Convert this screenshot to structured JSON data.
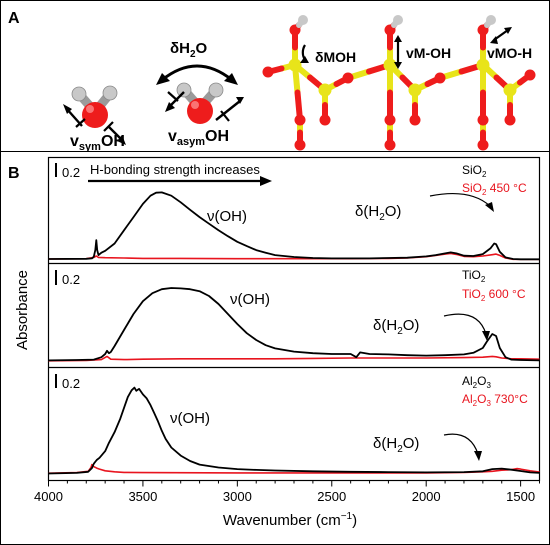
{
  "panel_a": {
    "label": "A",
    "molecule_1": {
      "main": "v",
      "sub": "sym",
      "tail": "OH"
    },
    "molecule_2": {
      "top_main": "δH",
      "top_sub": "2",
      "top_tail": "O",
      "main": "v",
      "sub": "asym",
      "tail": "OH"
    },
    "surface_labels": [
      "δMOH",
      "vM-OH",
      "vMO-H"
    ],
    "colors": {
      "oxygen": "#ee1c1c",
      "hydrogen": "#c8c8c8",
      "metal": "#e8e41a"
    }
  },
  "panel_b": {
    "label": "B"
  },
  "chart_data": {
    "type": "line",
    "xlabel_main": "Wavenumber (cm",
    "xlabel_sup": "−1",
    "xlabel_tail": ")",
    "ylabel": "Absorbance",
    "xlim": [
      4000,
      1400
    ],
    "x_ticks": [
      4000,
      3500,
      3000,
      2500,
      2000,
      1500
    ],
    "arrow_label": "H-bonding strength increases",
    "scale_bar_label": "0.2",
    "colors": {
      "untreated": "#000000",
      "heated": "#e8141e"
    },
    "subplots": [
      {
        "material": {
          "main": "SiO",
          "sub": "2",
          "tail": ""
        },
        "material_heated": {
          "main": "SiO",
          "sub": "2",
          "tail": " 450 °C"
        },
        "voh_label": "ν(OH)",
        "dh2o_label": {
          "main": "δ(H",
          "sub": "2",
          "tail": "O)"
        },
        "series": [
          {
            "key": "untreated",
            "points": [
              [
                4000,
                0.03
              ],
              [
                3800,
                0.035
              ],
              [
                3770,
                0.05
              ],
              [
                3760,
                0.1
              ],
              [
                3752,
                0.3
              ],
              [
                3747,
                0.6
              ],
              [
                3742,
                0.3
              ],
              [
                3735,
                0.15
              ],
              [
                3720,
                0.22
              ],
              [
                3700,
                0.28
              ],
              [
                3650,
                0.5
              ],
              [
                3600,
                0.9
              ],
              [
                3550,
                1.3
              ],
              [
                3500,
                1.7
              ],
              [
                3460,
                1.95
              ],
              [
                3430,
                2.04
              ],
              [
                3400,
                2.05
              ],
              [
                3350,
                1.95
              ],
              [
                3300,
                1.75
              ],
              [
                3250,
                1.52
              ],
              [
                3200,
                1.3
              ],
              [
                3150,
                1.1
              ],
              [
                3100,
                0.9
              ],
              [
                3050,
                0.72
              ],
              [
                3000,
                0.55
              ],
              [
                2950,
                0.42
              ],
              [
                2900,
                0.3
              ],
              [
                2850,
                0.22
              ],
              [
                2800,
                0.15
              ],
              [
                2700,
                0.09
              ],
              [
                2600,
                0.06
              ],
              [
                2500,
                0.05
              ],
              [
                2400,
                0.05
              ],
              [
                2300,
                0.05
              ],
              [
                2200,
                0.06
              ],
              [
                2100,
                0.07
              ],
              [
                2050,
                0.09
              ],
              [
                2000,
                0.11
              ],
              [
                1950,
                0.15
              ],
              [
                1900,
                0.2
              ],
              [
                1870,
                0.23
              ],
              [
                1840,
                0.2
              ],
              [
                1800,
                0.13
              ],
              [
                1750,
                0.12
              ],
              [
                1700,
                0.18
              ],
              [
                1660,
                0.35
              ],
              [
                1640,
                0.5
              ],
              [
                1630,
                0.48
              ],
              [
                1610,
                0.25
              ],
              [
                1580,
                0.08
              ],
              [
                1540,
                0.03
              ],
              [
                1500,
                0.02
              ],
              [
                1450,
                0.02
              ],
              [
                1400,
                0.02
              ]
            ]
          },
          {
            "key": "heated",
            "points": [
              [
                4000,
                0.03
              ],
              [
                3800,
                0.04
              ],
              [
                3760,
                0.08
              ],
              [
                3747,
                0.12
              ],
              [
                3735,
                0.08
              ],
              [
                3700,
                0.07
              ],
              [
                3600,
                0.06
              ],
              [
                3500,
                0.05
              ],
              [
                3300,
                0.05
              ],
              [
                3000,
                0.04
              ],
              [
                2800,
                0.04
              ],
              [
                2600,
                0.04
              ],
              [
                2400,
                0.04
              ],
              [
                2200,
                0.05
              ],
              [
                2100,
                0.06
              ],
              [
                2000,
                0.1
              ],
              [
                1950,
                0.14
              ],
              [
                1900,
                0.18
              ],
              [
                1870,
                0.2
              ],
              [
                1840,
                0.17
              ],
              [
                1800,
                0.11
              ],
              [
                1750,
                0.1
              ],
              [
                1700,
                0.12
              ],
              [
                1650,
                0.16
              ],
              [
                1630,
                0.18
              ],
              [
                1610,
                0.14
              ],
              [
                1580,
                0.06
              ],
              [
                1540,
                0.02
              ],
              [
                1500,
                0.02
              ],
              [
                1400,
                0.02
              ]
            ]
          }
        ]
      },
      {
        "material": {
          "main": "TiO",
          "sub": "2",
          "tail": ""
        },
        "material_heated": {
          "main": "TiO",
          "sub": "2",
          "tail": " 600 °C"
        },
        "voh_label": "ν(OH)",
        "dh2o_label": {
          "main": "δ(H",
          "sub": "2",
          "tail": "O)"
        },
        "series": [
          {
            "key": "untreated",
            "points": [
              [
                4000,
                0.04
              ],
              [
                3850,
                0.05
              ],
              [
                3760,
                0.06
              ],
              [
                3720,
                0.12
              ],
              [
                3700,
                0.2
              ],
              [
                3690,
                0.28
              ],
              [
                3680,
                0.22
              ],
              [
                3670,
                0.25
              ],
              [
                3650,
                0.4
              ],
              [
                3600,
                0.8
              ],
              [
                3550,
                1.2
              ],
              [
                3500,
                1.52
              ],
              [
                3450,
                1.72
              ],
              [
                3400,
                1.82
              ],
              [
                3350,
                1.85
              ],
              [
                3300,
                1.84
              ],
              [
                3250,
                1.82
              ],
              [
                3200,
                1.77
              ],
              [
                3150,
                1.65
              ],
              [
                3100,
                1.45
              ],
              [
                3050,
                1.2
              ],
              [
                3000,
                0.95
              ],
              [
                2950,
                0.72
              ],
              [
                2900,
                0.55
              ],
              [
                2850,
                0.42
              ],
              [
                2800,
                0.34
              ],
              [
                2700,
                0.26
              ],
              [
                2600,
                0.22
              ],
              [
                2500,
                0.2
              ],
              [
                2400,
                0.2
              ],
              [
                2370,
                0.12
              ],
              [
                2350,
                0.24
              ],
              [
                2300,
                0.2
              ],
              [
                2200,
                0.19
              ],
              [
                2100,
                0.17
              ],
              [
                2000,
                0.16
              ],
              [
                1900,
                0.17
              ],
              [
                1800,
                0.19
              ],
              [
                1750,
                0.23
              ],
              [
                1700,
                0.35
              ],
              [
                1680,
                0.5
              ],
              [
                1650,
                0.7
              ],
              [
                1630,
                0.65
              ],
              [
                1610,
                0.35
              ],
              [
                1580,
                0.12
              ],
              [
                1550,
                0.06
              ],
              [
                1500,
                0.05
              ],
              [
                1400,
                0.04
              ]
            ]
          },
          {
            "key": "heated",
            "points": [
              [
                4000,
                0.03
              ],
              [
                3800,
                0.04
              ],
              [
                3720,
                0.06
              ],
              [
                3690,
                0.14
              ],
              [
                3670,
                0.07
              ],
              [
                3600,
                0.06
              ],
              [
                3500,
                0.07
              ],
              [
                3300,
                0.08
              ],
              [
                3000,
                0.08
              ],
              [
                2800,
                0.08
              ],
              [
                2600,
                0.09
              ],
              [
                2400,
                0.1
              ],
              [
                2200,
                0.1
              ],
              [
                2000,
                0.1
              ],
              [
                1800,
                0.11
              ],
              [
                1700,
                0.12
              ],
              [
                1650,
                0.14
              ],
              [
                1630,
                0.13
              ],
              [
                1600,
                0.1
              ],
              [
                1550,
                0.08
              ],
              [
                1500,
                0.08
              ],
              [
                1400,
                0.07
              ]
            ]
          }
        ]
      },
      {
        "material": {
          "main": "Al",
          "sub": "2",
          "tail": "O"
        },
        "material_sub2": "3",
        "material_heated": {
          "main": "Al",
          "sub": "2",
          "tail": "O"
        },
        "material_heated_sub2": "3",
        "material_heated_tail": " 730°C",
        "voh_label": "ν(OH)",
        "dh2o_label": {
          "main": "δ(H",
          "sub": "2",
          "tail": "O)"
        },
        "series": [
          {
            "key": "untreated",
            "points": [
              [
                4000,
                0.02
              ],
              [
                3850,
                0.04
              ],
              [
                3790,
                0.08
              ],
              [
                3770,
                0.22
              ],
              [
                3760,
                0.38
              ],
              [
                3745,
                0.52
              ],
              [
                3730,
                0.6
              ],
              [
                3700,
                0.85
              ],
              [
                3680,
                1.15
              ],
              [
                3650,
                1.55
              ],
              [
                3620,
                2.05
              ],
              [
                3600,
                2.45
              ],
              [
                3580,
                2.85
              ],
              [
                3560,
                3.1
              ],
              [
                3545,
                3.2
              ],
              [
                3535,
                3.08
              ],
              [
                3520,
                3.15
              ],
              [
                3500,
                2.95
              ],
              [
                3480,
                2.8
              ],
              [
                3460,
                2.55
              ],
              [
                3440,
                2.25
              ],
              [
                3420,
                1.95
              ],
              [
                3400,
                1.6
              ],
              [
                3380,
                1.3
              ],
              [
                3350,
                0.98
              ],
              [
                3300,
                0.68
              ],
              [
                3250,
                0.48
              ],
              [
                3200,
                0.35
              ],
              [
                3100,
                0.24
              ],
              [
                3000,
                0.18
              ],
              [
                2900,
                0.15
              ],
              [
                2800,
                0.13
              ],
              [
                2600,
                0.1
              ],
              [
                2400,
                0.08
              ],
              [
                2200,
                0.07
              ],
              [
                2000,
                0.06
              ],
              [
                1800,
                0.07
              ],
              [
                1700,
                0.1
              ],
              [
                1650,
                0.18
              ],
              [
                1600,
                0.2
              ],
              [
                1550,
                0.16
              ],
              [
                1500,
                0.11
              ],
              [
                1450,
                0.06
              ],
              [
                1400,
                0.04
              ]
            ]
          },
          {
            "key": "heated",
            "points": [
              [
                4000,
                0.03
              ],
              [
                3850,
                0.05
              ],
              [
                3790,
                0.1
              ],
              [
                3775,
                0.24
              ],
              [
                3770,
                0.35
              ],
              [
                3762,
                0.28
              ],
              [
                3745,
                0.22
              ],
              [
                3730,
                0.18
              ],
              [
                3700,
                0.12
              ],
              [
                3650,
                0.08
              ],
              [
                3600,
                0.06
              ],
              [
                3500,
                0.05
              ],
              [
                3000,
                0.04
              ],
              [
                2500,
                0.04
              ],
              [
                2000,
                0.04
              ],
              [
                1800,
                0.06
              ],
              [
                1700,
                0.08
              ],
              [
                1650,
                0.1
              ],
              [
                1600,
                0.14
              ],
              [
                1550,
                0.16
              ],
              [
                1520,
                0.2
              ],
              [
                1500,
                0.18
              ],
              [
                1450,
                0.12
              ],
              [
                1400,
                0.07
              ]
            ]
          }
        ]
      }
    ]
  }
}
